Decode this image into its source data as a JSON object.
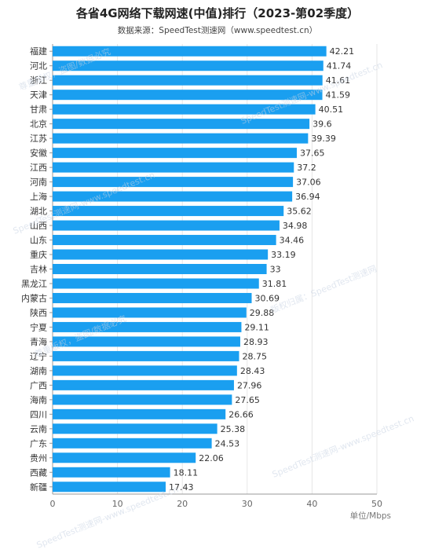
{
  "chart_data": {
    "type": "bar",
    "orientation": "horizontal",
    "title": "各省4G网络下载网速(中值)排行（2023-第02季度）",
    "subtitle": "数据来源：SpeedTest测速网（www.speedtest.cn）",
    "unit_label": "单位/Mbps",
    "xlim": [
      0,
      50
    ],
    "x_ticks": [
      "0",
      "10",
      "20",
      "30",
      "40",
      "50"
    ],
    "grid": "vertical",
    "bar_color": "#1a9ff0",
    "categories": [
      "福建",
      "河北",
      "浙江",
      "天津",
      "甘肃",
      "北京",
      "江苏",
      "安徽",
      "江西",
      "河南",
      "上海",
      "湖北",
      "山西",
      "山东",
      "重庆",
      "吉林",
      "黑龙江",
      "内蒙古",
      "陕西",
      "宁夏",
      "青海",
      "辽宁",
      "湖南",
      "广西",
      "海南",
      "四川",
      "云南",
      "广东",
      "贵州",
      "西藏",
      "新疆"
    ],
    "values": [
      42.21,
      41.74,
      41.61,
      41.59,
      40.51,
      39.6,
      39.39,
      37.65,
      37.2,
      37.06,
      36.94,
      35.62,
      34.98,
      34.46,
      33.19,
      33,
      31.81,
      30.69,
      29.88,
      29.11,
      28.93,
      28.75,
      28.43,
      27.96,
      27.65,
      26.66,
      25.38,
      24.53,
      22.06,
      18.11,
      17.43
    ],
    "value_labels": [
      "42.21",
      "41.74",
      "41.61",
      "41.59",
      "40.51",
      "39.6",
      "39.39",
      "37.65",
      "37.2",
      "37.06",
      "36.94",
      "35.62",
      "34.98",
      "34.46",
      "33.19",
      "33",
      "31.81",
      "30.69",
      "29.88",
      "29.11",
      "28.93",
      "28.75",
      "28.43",
      "27.96",
      "27.65",
      "26.66",
      "25.38",
      "24.53",
      "22.06",
      "18.11",
      "17.43"
    ]
  },
  "watermark": {
    "line1": "SpeedTest测速网-www.speedtest.cn",
    "line2": "版权归属：SpeedTest测速网",
    "line3": "尊重版权，盗图/数据必究"
  }
}
